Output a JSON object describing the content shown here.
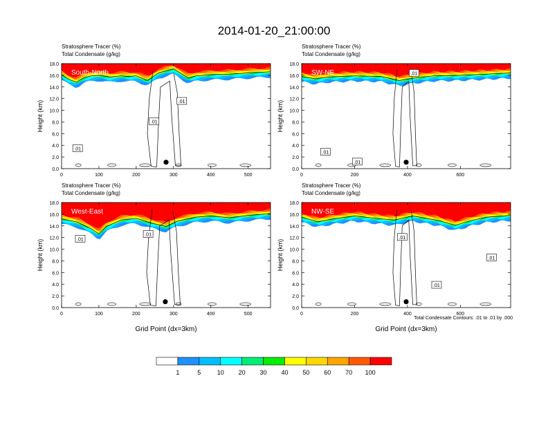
{
  "title": "2014-01-20_21:00:00",
  "colors": {
    "levels": [
      "#ffffff",
      "#1e90ff",
      "#00bfff",
      "#00ffff",
      "#00ee76",
      "#00ee00",
      "#9aff32",
      "#ffff00",
      "#ffd700",
      "#ffa500",
      "#ff5a00",
      "#ff0000"
    ],
    "contour": "#000000"
  },
  "colorbar": {
    "labels": [
      "1",
      "5",
      "10",
      "20",
      "30",
      "40",
      "50",
      "60",
      "70",
      "100"
    ]
  },
  "footnote": "Total Condensate Contours: .01 to .01 by .000",
  "chart_data": [
    {
      "type": "heatmap",
      "id": "p1",
      "subtitle1": "Stratosphere Tracer   (%)",
      "subtitle2": "Total Condensate   (g/kg)",
      "panel_label": "South-North",
      "ylabel": "Height (km)",
      "xlabel": "",
      "xlim": [
        0,
        560
      ],
      "ylim": [
        0,
        18
      ],
      "xticks": [
        0,
        100,
        200,
        300,
        400,
        500
      ],
      "yticks": [
        "0.0",
        "2.0",
        "4.0",
        "6.0",
        "8.0",
        "10.0",
        "12.0",
        "14.0",
        "16.0",
        "18.0"
      ],
      "tropopause": [
        [
          0,
          15.2
        ],
        [
          20,
          14.4
        ],
        [
          40,
          13.9
        ],
        [
          60,
          14.7
        ],
        [
          80,
          15.0
        ],
        [
          100,
          15.1
        ],
        [
          130,
          14.8
        ],
        [
          160,
          15.0
        ],
        [
          180,
          14.9
        ],
        [
          200,
          15.0
        ],
        [
          230,
          14.2
        ],
        [
          260,
          15.5
        ],
        [
          300,
          16.2
        ],
        [
          340,
          14.6
        ],
        [
          360,
          15.0
        ],
        [
          400,
          15.2
        ],
        [
          450,
          15.3
        ],
        [
          500,
          15.5
        ],
        [
          560,
          15.7
        ]
      ],
      "contour_labels": [
        {
          "x": 43,
          "y": 3.5,
          "text": ".01"
        },
        {
          "x": 248,
          "y": 8.1,
          "text": ".01"
        },
        {
          "x": 322,
          "y": 11.6,
          "text": ".01"
        }
      ],
      "marker": {
        "x": 280,
        "y": 1.1
      }
    },
    {
      "type": "heatmap",
      "id": "p2",
      "subtitle1": "Stratosphere Tracer   (%)",
      "subtitle2": "Total Condensate   (g/kg)",
      "panel_label": "SW-NE",
      "ylabel": "Height (km)",
      "xlabel": "",
      "xlim": [
        0,
        790
      ],
      "ylim": [
        0,
        18
      ],
      "xticks": [
        0,
        200,
        400,
        600
      ],
      "yticks": [
        "0.0",
        "2.0",
        "4.0",
        "6.0",
        "8.0",
        "10.0",
        "12.0",
        "14.0",
        "16.0",
        "18.0"
      ],
      "tropopause": [
        [
          0,
          14.9
        ],
        [
          50,
          14.5
        ],
        [
          100,
          14.8
        ],
        [
          200,
          15.0
        ],
        [
          300,
          14.9
        ],
        [
          370,
          14.2
        ],
        [
          420,
          14.6
        ],
        [
          500,
          15.0
        ],
        [
          600,
          15.1
        ],
        [
          700,
          15.3
        ],
        [
          790,
          15.5
        ]
      ],
      "contour_labels": [
        {
          "x": 90,
          "y": 2.9,
          "text": ".01"
        },
        {
          "x": 210,
          "y": 1.2,
          "text": ".01"
        },
        {
          "x": 425,
          "y": 16.4,
          "text": ".01"
        }
      ],
      "marker": {
        "x": 395,
        "y": 1.1
      }
    },
    {
      "type": "heatmap",
      "id": "p3",
      "subtitle1": "Stratosphere Tracer   (%)",
      "subtitle2": "Total Condensate   (g/kg)",
      "panel_label": "West-East",
      "ylabel": "Height (km)",
      "xlabel": "Grid Point (dx=3km)",
      "xlim": [
        0,
        560
      ],
      "ylim": [
        0,
        18
      ],
      "xticks": [
        0,
        100,
        200,
        300,
        400,
        500
      ],
      "yticks": [
        "0.0",
        "2.0",
        "4.0",
        "6.0",
        "8.0",
        "10.0",
        "12.0",
        "14.0",
        "16.0",
        "18.0"
      ],
      "tropopause": [
        [
          0,
          14.3
        ],
        [
          40,
          13.8
        ],
        [
          80,
          12.6
        ],
        [
          100,
          11.7
        ],
        [
          120,
          13.0
        ],
        [
          160,
          14.1
        ],
        [
          200,
          14.4
        ],
        [
          240,
          13.6
        ],
        [
          280,
          13.0
        ],
        [
          310,
          13.9
        ],
        [
          360,
          14.6
        ],
        [
          400,
          14.8
        ],
        [
          450,
          14.5
        ],
        [
          500,
          14.9
        ],
        [
          560,
          15.2
        ]
      ],
      "contour_labels": [
        {
          "x": 50,
          "y": 11.8,
          "text": ".01"
        },
        {
          "x": 232,
          "y": 12.6,
          "text": ".01"
        }
      ],
      "marker": {
        "x": 278,
        "y": 1.0
      }
    },
    {
      "type": "heatmap",
      "id": "p4",
      "subtitle1": "Stratosphere Tracer   (%)",
      "subtitle2": "Total Condensate   (g/kg)",
      "panel_label": "NW-SE",
      "ylabel": "Height (km)",
      "xlabel": "Grid Point (dx=3km)",
      "xlim": [
        0,
        790
      ],
      "ylim": [
        0,
        18
      ],
      "xticks": [
        0,
        200,
        400,
        600
      ],
      "yticks": [
        "0.0",
        "2.0",
        "4.0",
        "6.0",
        "8.0",
        "10.0",
        "12.0",
        "14.0",
        "16.0",
        "18.0"
      ],
      "tropopause": [
        [
          0,
          14.6
        ],
        [
          60,
          13.8
        ],
        [
          120,
          14.3
        ],
        [
          200,
          14.8
        ],
        [
          280,
          14.4
        ],
        [
          350,
          14.1
        ],
        [
          420,
          14.8
        ],
        [
          520,
          14.0
        ],
        [
          580,
          13.2
        ],
        [
          640,
          14.0
        ],
        [
          700,
          14.6
        ],
        [
          790,
          14.9
        ]
      ],
      "contour_labels": [
        {
          "x": 380,
          "y": 12.1,
          "text": ".01"
        },
        {
          "x": 510,
          "y": 3.9,
          "text": ".01"
        },
        {
          "x": 718,
          "y": 8.6,
          "text": ".01"
        }
      ],
      "marker": {
        "x": 395,
        "y": 1.0
      }
    }
  ]
}
